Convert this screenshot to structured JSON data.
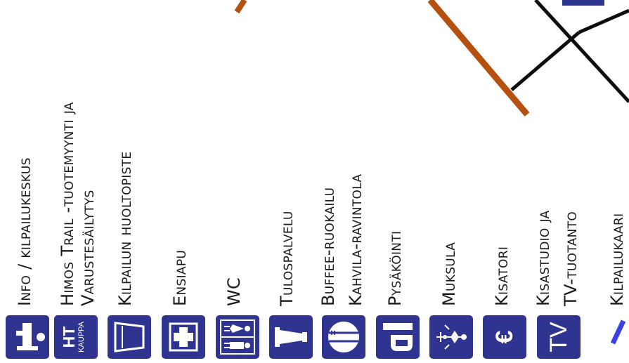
{
  "legend": {
    "items": [
      {
        "id": "info",
        "icon": "info-icon",
        "lines": [
          "Info / kilpailukeskus"
        ]
      },
      {
        "id": "himos-trail",
        "icon": "ht-kauppa-icon",
        "icon_text": [
          "HT",
          "KAUPPA"
        ],
        "lines": [
          "Himos Trail -tuotemyynti ja",
          "Varustesäilytys"
        ]
      },
      {
        "id": "huoltopiste",
        "icon": "cup-icon",
        "lines": [
          "Kilpailun huoltopiste"
        ]
      },
      {
        "id": "ensiapu",
        "icon": "first-aid-cross-icon",
        "lines": [
          "Ensiapu"
        ]
      },
      {
        "id": "wc",
        "icon": "wc-icon",
        "lines": [
          "WC"
        ]
      },
      {
        "id": "tulospalvelu",
        "icon": "lighthouse-icon",
        "lines": [
          "Tulospalvelu"
        ]
      },
      {
        "id": "ravintola",
        "icon": "plate-fork-knife-icon",
        "lines": [
          "Buffee-ruokailu",
          "Kahvila-ravintola"
        ]
      },
      {
        "id": "pysakointi",
        "icon": "parking-icon",
        "lines": [
          "Pysäköinti"
        ]
      },
      {
        "id": "muksula",
        "icon": "muksula-icon",
        "lines": [
          "Muksula"
        ]
      },
      {
        "id": "kisatori",
        "icon": "euro-icon",
        "icon_text": [
          "€"
        ],
        "lines": [
          "Kisatori"
        ]
      },
      {
        "id": "kisastudio",
        "icon": "tv-icon",
        "icon_text": [
          "TV"
        ],
        "lines": [
          "Kisastudio ja",
          "TV-tuotanto"
        ]
      },
      {
        "id": "kilpailukaari",
        "icon": "race-arch-icon",
        "lines": [
          "Kilpailukaari"
        ]
      }
    ]
  },
  "colors": {
    "icon_bg": "#2f3490",
    "road_black": "#0d0d0d",
    "road_orange": "#b5500f",
    "arch_blue": "#3b40e0",
    "text": "#1a1a1a"
  }
}
